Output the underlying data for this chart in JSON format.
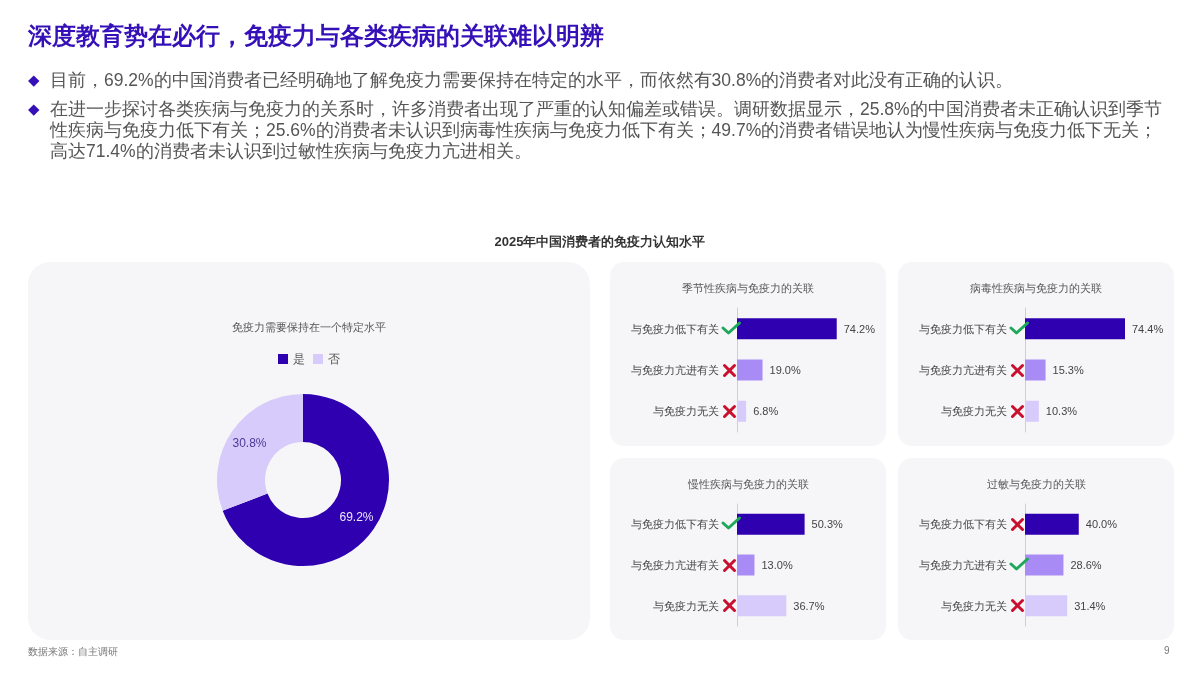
{
  "chart_data": [
    {
      "type": "donut",
      "title": "免疫力需要保持在一个特定水平",
      "categories": [
        "是",
        "否"
      ],
      "values": [
        69.2,
        30.8
      ],
      "colors": [
        "#2e00b0",
        "#d7cbfb"
      ],
      "value_labels": [
        "69.2%",
        "30.8%"
      ],
      "legend": "top",
      "annotations": [
        "深度教育势在必行，免疫力与各类疾病的关联难以明辨",
        "目前，69.2%的中国消费者已经明确地了解免疫力需要保持在特定的水平，而依然有30.8%的消费者对此没有正确的认识。",
        "在进一步探讨各类疾病与免疫力的关系时，许多消费者出现了严重的认知偏差或错误。调研数据显示，25.8%的中国消费者未正确认识到季节性疾病与免疫力低下有关；25.6%的消费者未认识到病毒性疾病与免疫力低下有关；49.7%的消费者错误地认为慢性疾病与免疫力低下无关；高达71.4%的消费者未认识到过敏性疾病与免疫力亢进相关。",
        "2025年中国消费者的免疫力认知水平",
        "数据来源：自主调研",
        "9"
      ]
    },
    {
      "type": "bar",
      "orientation": "horizontal",
      "title": "季节性疾病与免疫力的关联",
      "categories": [
        "与免疫力低下有关",
        "与免疫力亢进有关",
        "与免疫力无关"
      ],
      "values": [
        74.2,
        19.0,
        6.8
      ],
      "colors": [
        "#2e00b0",
        "#a98bf5",
        "#d7cbfb"
      ],
      "value_labels": [
        "74.2%",
        "19.0%",
        "6.8%"
      ],
      "tick_labels": "y"
    },
    {
      "type": "bar",
      "orientation": "horizontal",
      "title": "病毒性疾病与免疫力的关联",
      "categories": [
        "与免疫力低下有关",
        "与免疫力亢进有关",
        "与免疫力无关"
      ],
      "values": [
        74.4,
        15.3,
        10.3
      ],
      "colors": [
        "#2e00b0",
        "#a98bf5",
        "#d7cbfb"
      ],
      "value_labels": [
        "74.4%",
        "15.3%",
        "10.3%"
      ],
      "tick_labels": "y"
    },
    {
      "type": "bar",
      "orientation": "horizontal",
      "title": "慢性疾病与免疫力的关联",
      "categories": [
        "与免疫力低下有关",
        "与免疫力亢进有关",
        "与免疫力无关"
      ],
      "values": [
        50.3,
        13.0,
        36.7
      ],
      "colors": [
        "#2e00b0",
        "#a98bf5",
        "#d7cbfb"
      ],
      "value_labels": [
        "50.3%",
        "13.0%",
        "36.7%"
      ],
      "tick_labels": "y"
    },
    {
      "type": "bar",
      "orientation": "horizontal",
      "title": "过敏与免疫力的关联",
      "categories": [
        "与免疫力低下有关",
        "与免疫力亢进有关",
        "与免疫力无关"
      ],
      "values": [
        40.0,
        28.6,
        31.4
      ],
      "colors": [
        "#2e00b0",
        "#a98bf5",
        "#d7cbfb"
      ],
      "value_labels": [
        "40.0%",
        "28.6%",
        "31.4%"
      ],
      "tick_labels": "y"
    }
  ]
}
